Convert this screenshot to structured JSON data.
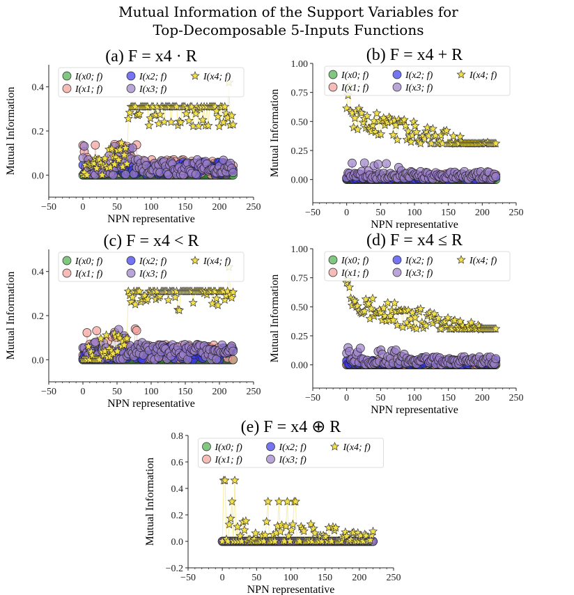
{
  "figure": {
    "suptitle_line1": "Mutual Information of the Support Variables for",
    "suptitle_line2": "Top-Decomposable 5-Inputs Functions"
  },
  "legend_labels": [
    "I(x0; f)",
    "I(x1; f)",
    "I(x2; f)",
    "I(x3; f)",
    "I(x4; f)"
  ],
  "series_colors": {
    "I(x0; f)": "#4daf4a",
    "I(x1; f)": "#f4a09a",
    "I(x2; f)": "#3a3af0",
    "I(x3; f)": "#9b7fc8",
    "I(x4; f)": "#f2e04b"
  },
  "markers": {
    "I(x0; f)": "circle",
    "I(x1; f)": "circle",
    "I(x2; f)": "circle",
    "I(x3; f)": "circle",
    "I(x4; f)": "star"
  },
  "chart_data": [
    {
      "id": "a",
      "type": "scatter",
      "title_prefix": "(a)",
      "title_formula": "F = x4 · R",
      "xlabel": "NPN representative",
      "ylabel": "Mutual Information",
      "xlim": [
        -50,
        250
      ],
      "ylim": [
        -0.1,
        0.5
      ],
      "xticks": [
        -50,
        0,
        50,
        100,
        150,
        200,
        250
      ],
      "yticks": [
        0.0,
        0.2,
        0.4
      ],
      "ytick_labels": [
        "0.0",
        "0.2",
        "0.4"
      ],
      "legend": "top-center",
      "series": [
        {
          "name": "I(x0; f)",
          "x_range": [
            0,
            220
          ],
          "band": [
            0.0,
            0.0
          ]
        },
        {
          "name": "I(x1; f)",
          "x_range": [
            0,
            220
          ],
          "band": [
            0.0,
            0.14
          ]
        },
        {
          "name": "I(x2; f)",
          "x_range": [
            0,
            220
          ],
          "band": [
            0.0,
            0.06
          ]
        },
        {
          "name": "I(x3; f)",
          "x_range": [
            0,
            220
          ],
          "band": [
            0.0,
            0.14
          ]
        },
        {
          "name": "I(x4; f)",
          "x_range": [
            0,
            220
          ],
          "band": [
            0.1,
            0.31
          ],
          "max": 0.42
        }
      ]
    },
    {
      "id": "b",
      "type": "scatter",
      "title_prefix": "(b)",
      "title_formula": "F = x4 + R",
      "xlabel": "NPN representative",
      "ylabel": "Mutual Information",
      "xlim": [
        -50,
        250
      ],
      "ylim": [
        -0.2,
        1.0
      ],
      "xticks": [
        -50,
        0,
        50,
        100,
        150,
        200,
        250
      ],
      "yticks": [
        0.0,
        0.25,
        0.5,
        0.75,
        1.0
      ],
      "ytick_labels": [
        "0.00",
        "0.25",
        "0.50",
        "0.75",
        "1.00"
      ],
      "legend": "top-center",
      "series": [
        {
          "name": "I(x0; f)",
          "x_range": [
            0,
            220
          ],
          "band": [
            0.0,
            0.0
          ]
        },
        {
          "name": "I(x1; f)",
          "x_range": [
            0,
            220
          ],
          "band": [
            0.0,
            0.05
          ]
        },
        {
          "name": "I(x2; f)",
          "x_range": [
            0,
            220
          ],
          "band": [
            0.0,
            0.04
          ]
        },
        {
          "name": "I(x3; f)",
          "x_range": [
            0,
            220
          ],
          "band": [
            0.0,
            0.15
          ]
        },
        {
          "name": "I(x4; f)",
          "x_range": [
            0,
            220
          ],
          "band": [
            0.31,
            0.65
          ],
          "max": 0.83
        }
      ]
    },
    {
      "id": "c",
      "type": "scatter",
      "title_prefix": "(c)",
      "title_formula": "F = x4 < R",
      "xlabel": "NPN representative",
      "ylabel": "Mutual Information",
      "xlim": [
        -50,
        250
      ],
      "ylim": [
        -0.1,
        0.5
      ],
      "xticks": [
        -50,
        0,
        50,
        100,
        150,
        200,
        250
      ],
      "yticks": [
        0.0,
        0.2,
        0.4
      ],
      "ytick_labels": [
        "0.0",
        "0.2",
        "0.4"
      ],
      "legend": "top-center",
      "series": [
        {
          "name": "I(x0; f)",
          "x_range": [
            0,
            220
          ],
          "band": [
            0.0,
            0.0
          ]
        },
        {
          "name": "I(x1; f)",
          "x_range": [
            0,
            220
          ],
          "band": [
            0.0,
            0.14
          ]
        },
        {
          "name": "I(x2; f)",
          "x_range": [
            0,
            220
          ],
          "band": [
            0.0,
            0.06
          ]
        },
        {
          "name": "I(x3; f)",
          "x_range": [
            0,
            220
          ],
          "band": [
            0.0,
            0.14
          ]
        },
        {
          "name": "I(x4; f)",
          "x_range": [
            0,
            220
          ],
          "band": [
            0.1,
            0.31
          ],
          "max": 0.42
        }
      ]
    },
    {
      "id": "d",
      "type": "scatter",
      "title_prefix": "(d)",
      "title_formula": "F = x4 ≤ R",
      "xlabel": "NPN representative",
      "ylabel": "Mutual Information",
      "xlim": [
        -50,
        250
      ],
      "ylim": [
        -0.2,
        1.0
      ],
      "xticks": [
        -50,
        0,
        50,
        100,
        150,
        200,
        250
      ],
      "yticks": [
        0.0,
        0.25,
        0.5,
        0.75,
        1.0
      ],
      "ytick_labels": [
        "0.00",
        "0.25",
        "0.50",
        "0.75",
        "1.00"
      ],
      "legend": "top-center",
      "series": [
        {
          "name": "I(x0; f)",
          "x_range": [
            0,
            220
          ],
          "band": [
            0.0,
            0.0
          ]
        },
        {
          "name": "I(x1; f)",
          "x_range": [
            0,
            220
          ],
          "band": [
            0.0,
            0.05
          ]
        },
        {
          "name": "I(x2; f)",
          "x_range": [
            0,
            220
          ],
          "band": [
            0.0,
            0.04
          ]
        },
        {
          "name": "I(x3; f)",
          "x_range": [
            0,
            220
          ],
          "band": [
            0.0,
            0.15
          ]
        },
        {
          "name": "I(x4; f)",
          "x_range": [
            0,
            220
          ],
          "band": [
            0.31,
            0.65
          ],
          "max": 0.83
        }
      ]
    },
    {
      "id": "e",
      "type": "scatter",
      "title_prefix": "(e)",
      "title_formula": "F = x4 ⊕ R",
      "xlabel": "NPN representative",
      "ylabel": "Mutual Information",
      "xlim": [
        -50,
        250
      ],
      "ylim": [
        -0.2,
        0.8
      ],
      "xticks": [
        -50,
        0,
        50,
        100,
        150,
        200,
        250
      ],
      "yticks": [
        -0.2,
        0.0,
        0.2,
        0.4,
        0.6,
        0.8
      ],
      "ytick_labels": [
        "−0.2",
        "0.0",
        "0.2",
        "0.4",
        "0.6",
        "0.8"
      ],
      "legend": "top-center",
      "series": [
        {
          "name": "I(x0; f)",
          "x_range": [
            0,
            220
          ],
          "band": [
            0.0,
            0.0
          ]
        },
        {
          "name": "I(x1; f)",
          "x_range": [
            0,
            220
          ],
          "band": [
            0.0,
            0.0
          ]
        },
        {
          "name": "I(x2; f)",
          "x_range": [
            0,
            220
          ],
          "band": [
            0.0,
            0.0
          ]
        },
        {
          "name": "I(x3; f)",
          "x_range": [
            0,
            220
          ],
          "band": [
            0.0,
            0.0
          ]
        },
        {
          "name": "I(x4; f)",
          "x_range": [
            0,
            220
          ],
          "band": [
            0.0,
            0.2
          ],
          "max": 0.46
        }
      ]
    }
  ]
}
